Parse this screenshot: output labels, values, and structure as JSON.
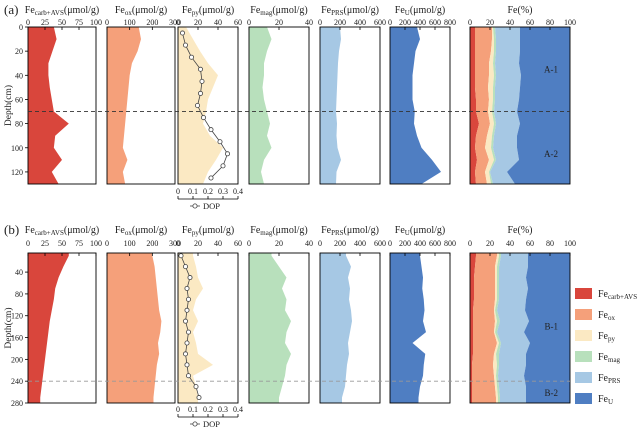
{
  "figure": {
    "panel_labels": [
      "(a)",
      "(b)"
    ],
    "depth_label": "Depth(cm)",
    "dop_label": "DOP",
    "legend": [
      {
        "base": "Fe",
        "sub": "carb+AVS",
        "color": "#d9463c"
      },
      {
        "base": "Fe",
        "sub": "ox",
        "color": "#f5a07a"
      },
      {
        "base": "Fe",
        "sub": "py",
        "color": "#fbe9c3"
      },
      {
        "base": "Fe",
        "sub": "mag",
        "color": "#b8e0bc"
      },
      {
        "base": "Fe",
        "sub": "PRS",
        "color": "#a6c8e4"
      },
      {
        "base": "Fe",
        "sub": "U",
        "color": "#4f7ec2"
      }
    ],
    "colors": {
      "carb": "#d9463c",
      "ox": "#f5a07a",
      "py": "#fbe9c3",
      "mag": "#b8e0bc",
      "prs": "#a6c8e4",
      "u": "#4f7ec2"
    }
  },
  "chart_data": [
    {
      "type": "area",
      "panel": "(a)",
      "yaxis": {
        "label": "Depth(cm)",
        "ticks": [
          0,
          20,
          40,
          60,
          80,
          100,
          120
        ],
        "ylim": [
          0,
          130
        ],
        "inverted": true
      },
      "dashed_line_depth": 70,
      "zone_labels": [
        {
          "text": "A-1",
          "depth": 35
        },
        {
          "text": "A-2",
          "depth": 105
        }
      ],
      "depth": [
        0,
        10,
        20,
        30,
        40,
        50,
        60,
        70,
        80,
        90,
        100,
        110,
        120,
        130
      ],
      "subplots": [
        {
          "key": "carb",
          "title_base": "Fe",
          "title_sub": "carb+AVS",
          "title_unit": "(μmol/g)",
          "xticks": [
            0,
            25,
            50,
            75,
            100
          ],
          "xlim": [
            0,
            100
          ],
          "values": [
            38,
            42,
            36,
            30,
            30,
            32,
            35,
            38,
            60,
            40,
            38,
            50,
            35,
            45
          ]
        },
        {
          "key": "ox",
          "title_base": "Fe",
          "title_sub": "ox",
          "title_unit": "(μmol/g)",
          "xticks": [
            0,
            100,
            200,
            300
          ],
          "xlim": [
            0,
            300
          ],
          "values": [
            140,
            150,
            135,
            110,
            100,
            95,
            90,
            85,
            80,
            75,
            70,
            90,
            70,
            80
          ]
        },
        {
          "key": "py",
          "title_base": "Fe",
          "title_sub": "py",
          "title_unit": "(μmol/g)",
          "xticks": [
            0,
            20,
            40,
            60
          ],
          "xlim": [
            0,
            60
          ],
          "values": [
            8,
            15,
            22,
            30,
            40,
            35,
            30,
            28,
            25,
            32,
            45,
            38,
            30,
            25
          ],
          "dop": {
            "xticks": [
              0.0,
              0.1,
              0.2,
              0.3,
              0.4
            ],
            "xlim": [
              0,
              0.4
            ],
            "depth": [
              5,
              15,
              25,
              35,
              45,
              55,
              65,
              75,
              85,
              95,
              105,
              115,
              125
            ],
            "values": [
              0.03,
              0.05,
              0.09,
              0.15,
              0.16,
              0.15,
              0.13,
              0.17,
              0.22,
              0.28,
              0.33,
              0.3,
              0.22
            ]
          }
        },
        {
          "key": "mag",
          "title_base": "Fe",
          "title_sub": "mag",
          "title_unit": "(μmol/g)",
          "xticks": [
            0,
            20,
            40
          ],
          "xlim": [
            0,
            40
          ],
          "values": [
            12,
            15,
            12,
            10,
            10,
            9,
            10,
            12,
            14,
            12,
            15,
            10,
            8,
            10
          ]
        },
        {
          "key": "prs",
          "title_base": "Fe",
          "title_sub": "PRS",
          "title_unit": "(μmol/g)",
          "xticks": [
            0,
            200,
            400,
            600
          ],
          "xlim": [
            0,
            600
          ],
          "values": [
            200,
            210,
            190,
            180,
            175,
            170,
            165,
            160,
            170,
            165,
            175,
            210,
            165,
            160
          ]
        },
        {
          "key": "u",
          "title_base": "Fe",
          "title_sub": "U",
          "title_unit": "(μmol/g)",
          "xticks": [
            0,
            200,
            400,
            600,
            800
          ],
          "xlim": [
            0,
            800
          ],
          "values": [
            360,
            400,
            340,
            320,
            300,
            300,
            300,
            330,
            320,
            360,
            420,
            560,
            680,
            420
          ]
        },
        {
          "key": "pct",
          "title_base": "Fe(%)",
          "title_sub": "",
          "title_unit": "",
          "xticks": [
            0,
            20,
            40,
            60,
            80,
            100
          ],
          "xlim": [
            0,
            100
          ],
          "stacked": {
            "carb": [
              5,
              5,
              5,
              5,
              5,
              5,
              6,
              6,
              9,
              6,
              5,
              7,
              5,
              6
            ],
            "ox": [
              17,
              17,
              16,
              14,
              14,
              13,
              13,
              12,
              11,
              11,
              10,
              12,
              10,
              11
            ],
            "py": [
              1,
              2,
              3,
              4,
              5,
              5,
              4,
              4,
              4,
              5,
              6,
              5,
              4,
              4
            ],
            "mag": [
              2,
              2,
              2,
              2,
              2,
              2,
              2,
              2,
              2,
              2,
              2,
              2,
              1,
              2
            ],
            "prs": [
              25,
              24,
              24,
              24,
              25,
              25,
              24,
              23,
              24,
              23,
              24,
              23,
              17,
              22
            ],
            "u": [
              50,
              50,
              50,
              51,
              49,
              50,
              51,
              53,
              50,
              53,
              53,
              51,
              63,
              55
            ]
          }
        }
      ]
    },
    {
      "type": "area",
      "panel": "(b)",
      "yaxis": {
        "label": "Depth(cm)",
        "ticks": [
          40,
          80,
          120,
          160,
          200,
          240,
          280
        ],
        "ylim": [
          5,
          280
        ],
        "inverted": true
      },
      "dashed_line_depth": 240,
      "zone_labels": [
        {
          "text": "B-1",
          "depth": 140
        },
        {
          "text": "B-2",
          "depth": 262
        }
      ],
      "depth": [
        10,
        30,
        50,
        70,
        90,
        110,
        130,
        150,
        170,
        190,
        210,
        230,
        250,
        270
      ],
      "subplots": [
        {
          "key": "carb",
          "title_base": "Fe",
          "title_sub": "carb+AVS",
          "title_unit": "(μmol/g)",
          "xticks": [
            0,
            25,
            50,
            75,
            100
          ],
          "xlim": [
            0,
            100
          ],
          "values": [
            60,
            52,
            45,
            40,
            38,
            35,
            32,
            30,
            28,
            26,
            24,
            22,
            20,
            18
          ]
        },
        {
          "key": "ox",
          "title_base": "Fe",
          "title_sub": "ox",
          "title_unit": "(μmol/g)",
          "xticks": [
            0,
            100,
            200,
            300
          ],
          "xlim": [
            0,
            300
          ],
          "values": [
            200,
            210,
            215,
            220,
            225,
            230,
            240,
            235,
            225,
            230,
            220,
            215,
            210,
            205
          ]
        },
        {
          "key": "py",
          "title_base": "Fe",
          "title_sub": "py",
          "title_unit": "(μmol/g)",
          "xticks": [
            0,
            20,
            40,
            60
          ],
          "xlim": [
            0,
            60
          ],
          "values": [
            15,
            18,
            20,
            25,
            18,
            15,
            20,
            15,
            18,
            20,
            35,
            15,
            18,
            20
          ],
          "dop": {
            "xticks": [
              0.0,
              0.1,
              0.2,
              0.3,
              0.4
            ],
            "xlim": [
              0,
              0.4
            ],
            "depth": [
              10,
              30,
              50,
              70,
              90,
              110,
              130,
              150,
              170,
              190,
              210,
              230,
              250,
              270
            ],
            "values": [
              0.02,
              0.05,
              0.08,
              0.06,
              0.07,
              0.06,
              0.05,
              0.07,
              0.06,
              0.05,
              0.06,
              0.07,
              0.12,
              0.14
            ]
          }
        },
        {
          "key": "mag",
          "title_base": "Fe",
          "title_sub": "mag",
          "title_unit": "(μmol/g)",
          "xticks": [
            0,
            20,
            40
          ],
          "xlim": [
            0,
            40
          ],
          "values": [
            15,
            20,
            25,
            22,
            25,
            24,
            28,
            25,
            24,
            28,
            25,
            24,
            22,
            20
          ]
        },
        {
          "key": "prs",
          "title_base": "Fe",
          "title_sub": "PRS",
          "title_unit": "(μmol/g)",
          "xticks": [
            0,
            200,
            400,
            600
          ],
          "xlim": [
            0,
            600
          ],
          "values": [
            260,
            310,
            280,
            300,
            290,
            310,
            320,
            300,
            280,
            290,
            270,
            260,
            250,
            220
          ]
        },
        {
          "key": "u",
          "title_base": "Fe",
          "title_sub": "U",
          "title_unit": "(μmol/g)",
          "xticks": [
            0,
            200,
            400,
            600,
            800
          ],
          "xlim": [
            0,
            800
          ],
          "values": [
            400,
            420,
            440,
            430,
            450,
            460,
            440,
            480,
            300,
            470,
            450,
            440,
            400,
            380
          ]
        },
        {
          "key": "pct",
          "title_base": "Fe(%)",
          "title_sub": "",
          "title_unit": "",
          "xticks": [
            0,
            20,
            40,
            60,
            80,
            100
          ],
          "xlim": [
            0,
            100
          ],
          "stacked": {
            "carb": [
              6,
              5,
              4,
              4,
              4,
              3,
              3,
              3,
              3,
              3,
              2,
              2,
              2,
              2
            ],
            "ox": [
              21,
              20,
              21,
              21,
              21,
              21,
              22,
              21,
              24,
              21,
              21,
              22,
              23,
              24
            ],
            "py": [
              2,
              2,
              2,
              2,
              2,
              1,
              2,
              1,
              2,
              2,
              4,
              2,
              2,
              2
            ],
            "mag": [
              2,
              2,
              2,
              2,
              2,
              2,
              3,
              2,
              2,
              3,
              2,
              2,
              2,
              2
            ],
            "prs": [
              27,
              29,
              27,
              29,
              27,
              28,
              29,
              27,
              29,
              27,
              27,
              26,
              27,
              26
            ],
            "u": [
              42,
              42,
              44,
              42,
              44,
              45,
              41,
              46,
              40,
              44,
              44,
              46,
              44,
              44
            ]
          }
        }
      ]
    }
  ]
}
